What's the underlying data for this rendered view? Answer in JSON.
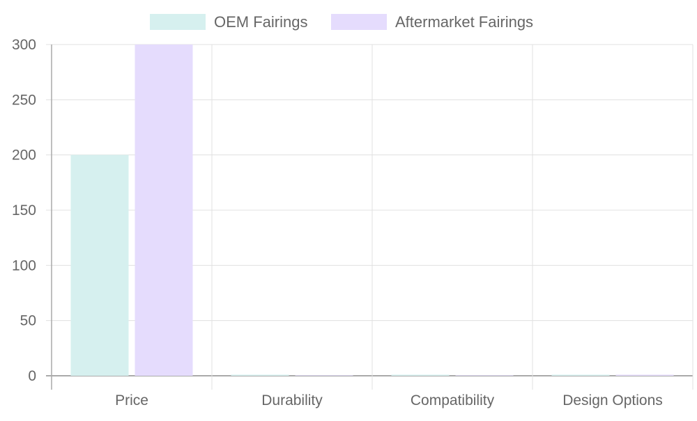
{
  "chart_data": {
    "type": "bar",
    "categories": [
      "Price",
      "Durability",
      "Compatibility",
      "Design Options"
    ],
    "series": [
      {
        "name": "OEM Fairings",
        "values": [
          200,
          1,
          1,
          1
        ],
        "color": "#d6f0ef"
      },
      {
        "name": "Aftermarket Fairings",
        "values": [
          300,
          0.5,
          0.5,
          1
        ],
        "color": "#e5dcfd"
      }
    ],
    "ylim": [
      0,
      300
    ],
    "yticks": [
      0,
      50,
      100,
      150,
      200,
      250,
      300
    ],
    "grid": true,
    "legend": "top"
  }
}
